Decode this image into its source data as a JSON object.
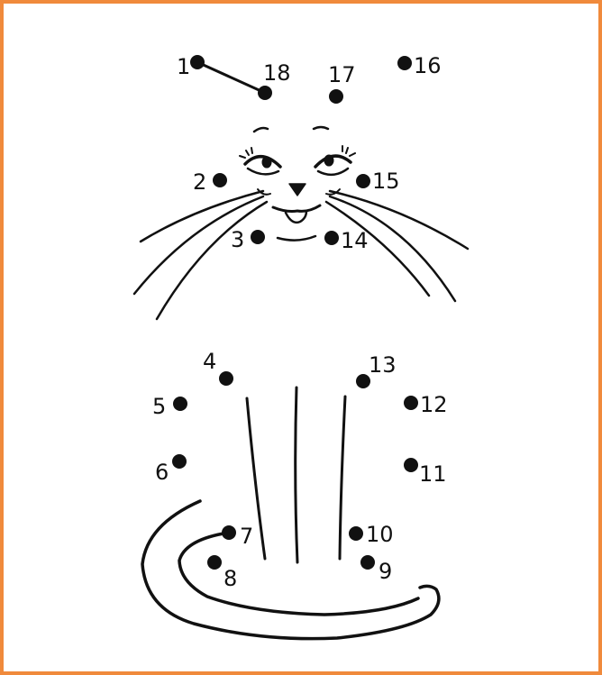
{
  "colors": {
    "border": "#f08a3c",
    "ink": "#111111",
    "background": "#ffffff"
  },
  "picture": "cat-dot-to-dot",
  "dots": [
    {
      "n": "1"
    },
    {
      "n": "2"
    },
    {
      "n": "3"
    },
    {
      "n": "4"
    },
    {
      "n": "5"
    },
    {
      "n": "6"
    },
    {
      "n": "7"
    },
    {
      "n": "8"
    },
    {
      "n": "9"
    },
    {
      "n": "10"
    },
    {
      "n": "11"
    },
    {
      "n": "12"
    },
    {
      "n": "13"
    },
    {
      "n": "14"
    },
    {
      "n": "15"
    },
    {
      "n": "16"
    },
    {
      "n": "17"
    },
    {
      "n": "18"
    }
  ],
  "drawn_segment": {
    "from": "1",
    "to": "18"
  }
}
